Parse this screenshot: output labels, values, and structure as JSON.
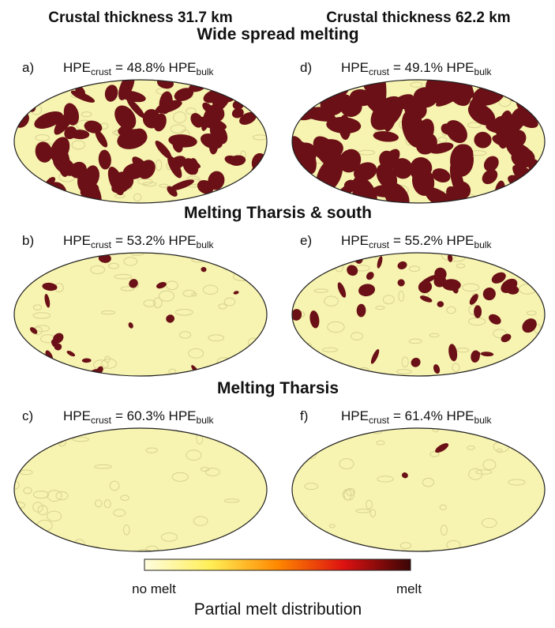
{
  "column_headers": [
    "Crustal thickness 31.7 km",
    "Crustal thickness 62.2 km"
  ],
  "rows": [
    {
      "title": "Wide spread melting",
      "panels": [
        {
          "label": "a)",
          "hpe": "HPE",
          "crust": "crust",
          "value": "= 48.8% HPE",
          "bulk": "bulk"
        },
        {
          "label": "d)",
          "hpe": "HPE",
          "crust": "crust",
          "value": "= 49.1% HPE",
          "bulk": "bulk"
        }
      ]
    },
    {
      "title": "Melting Tharsis & south",
      "panels": [
        {
          "label": "b)",
          "hpe": "HPE",
          "crust": "crust",
          "value": "= 53.2% HPE",
          "bulk": "bulk"
        },
        {
          "label": "e)",
          "hpe": "HPE",
          "crust": "crust",
          "value": "= 55.2% HPE",
          "bulk": "bulk"
        }
      ]
    },
    {
      "title": "Melting Tharsis",
      "panels": [
        {
          "label": "c)",
          "hpe": "HPE",
          "crust": "crust",
          "value": "= 60.3% HPE",
          "bulk": "bulk"
        },
        {
          "label": "f)",
          "hpe": "HPE",
          "crust": "crust",
          "value": "= 61.4% HPE",
          "bulk": "bulk"
        }
      ]
    }
  ],
  "colorbar": {
    "min_label": "no melt",
    "max_label": "melt",
    "title": "Partial melt distribution"
  }
}
